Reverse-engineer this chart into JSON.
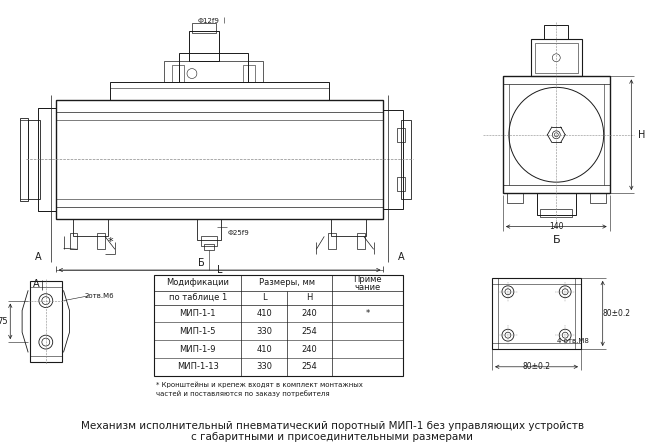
{
  "title": "Механизм исполнительный пневматический поротный МИП-1 без управляющих устройств\nс габаритными и присоединительными размерами",
  "footnote_line1": "* Кронштейны и крепеж входят в комплект монтажных",
  "footnote_line2": "частей и поставляются по заказу потребителя",
  "table_rows": [
    [
      "МИП-1-1",
      "410",
      "240",
      "*"
    ],
    [
      "МИП-1-5",
      "330",
      "254",
      ""
    ],
    [
      "МИП-1-9",
      "410",
      "240",
      ""
    ],
    [
      "МИП-1-13",
      "330",
      "254",
      ""
    ]
  ],
  "bg_color": "#ffffff",
  "lc": "#1a1a1a",
  "dc": "#1a1a1a",
  "gray": "#888888"
}
